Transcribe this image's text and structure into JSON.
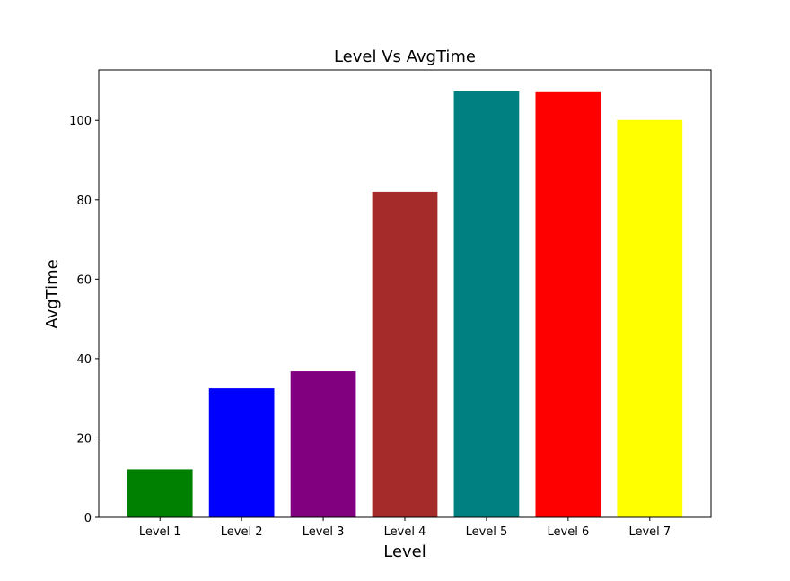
{
  "chart_data": {
    "type": "bar",
    "title": "Level Vs AvgTime",
    "xlabel": "Level",
    "ylabel": "AvgTime",
    "categories": [
      "Level 1",
      "Level 2",
      "Level 3",
      "Level 4",
      "Level 5",
      "Level 6",
      "Level 7"
    ],
    "values": [
      12.1,
      32.5,
      36.8,
      82.0,
      107.3,
      107.1,
      100.1
    ],
    "colors": [
      "#008000",
      "#0000ff",
      "#800080",
      "#a52a2a",
      "#008080",
      "#ff0000",
      "#ffff00"
    ],
    "ylim": [
      0,
      112.7
    ],
    "yticks": [
      0,
      20,
      40,
      60,
      80,
      100
    ],
    "ytick_labels": [
      "0",
      "20",
      "40",
      "60",
      "80",
      "100"
    ],
    "grid": false,
    "legend": "none"
  }
}
